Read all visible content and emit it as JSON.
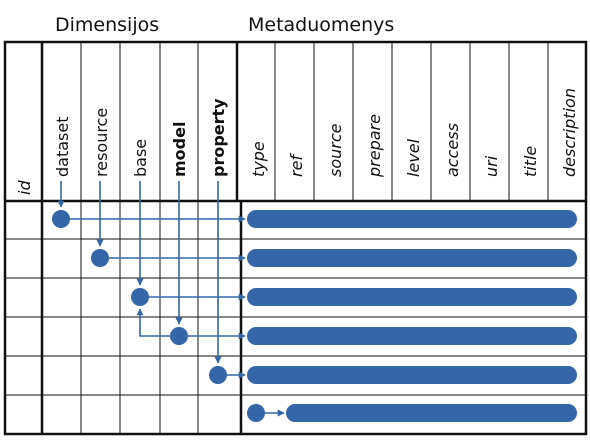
{
  "groups": {
    "dimensions_title": "Dimensijos",
    "metadata_title": "Metaduomenys"
  },
  "columns": {
    "id": "id",
    "dataset": "dataset",
    "resource": "resource",
    "base": "base",
    "model": "model",
    "property": "property",
    "type": "type",
    "ref": "ref",
    "source": "source",
    "prepare": "prepare",
    "level": "level",
    "access": "access",
    "uri": "uri",
    "title": "title",
    "description": "description"
  },
  "colors": {
    "accent": "#3566a8",
    "grid_line": "#111111"
  }
}
